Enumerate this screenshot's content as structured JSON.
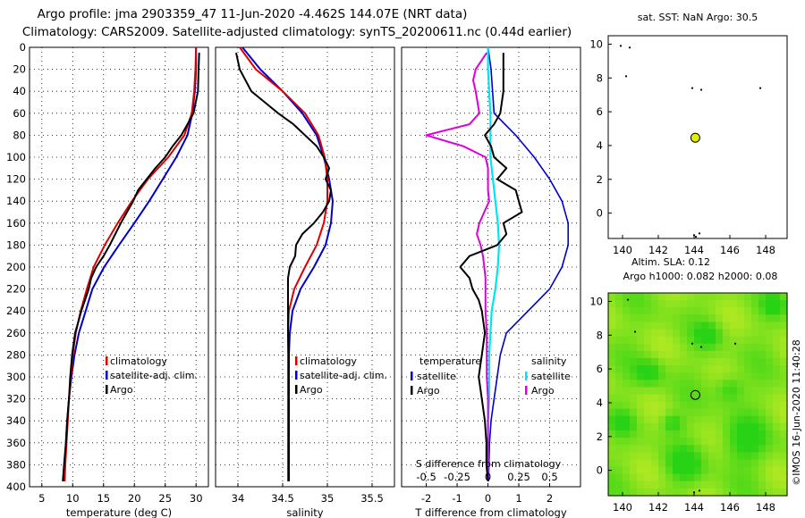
{
  "title_line1": "Argo profile: jma 2903359_47 11-Jun-2020 -4.462S 144.07E (NRT data)",
  "title_line2": "Climatology: CARS2009. Satellite-adjusted climatology: synTS_20200611.nc (0.44d earlier)",
  "footer_stamp": "©IMOS 16-Jun-2020 11:40:28",
  "colors": {
    "climatology": "#dd0000",
    "satellite": "#0000cc",
    "argo": "#000000",
    "sal_satellite": "#00e5ee",
    "sal_argo": "#dd00dd",
    "marker": "#e0f000"
  },
  "chart_data": [
    {
      "type": "line",
      "id": "temperature",
      "xlabel": "temperature (deg C)",
      "xlim": [
        3,
        32
      ],
      "ylim": [
        400,
        0
      ],
      "xticks": [
        5,
        10,
        15,
        20,
        25,
        30
      ],
      "yticks": [
        0,
        20,
        40,
        60,
        80,
        100,
        120,
        140,
        160,
        180,
        200,
        220,
        240,
        260,
        280,
        300,
        320,
        340,
        360,
        380,
        400
      ],
      "legend": [
        "climatology",
        "satellite-adj. clim.",
        "Argo"
      ],
      "series": [
        {
          "name": "climatology",
          "depth": [
            0,
            20,
            40,
            60,
            80,
            100,
            120,
            140,
            160,
            180,
            200,
            220,
            240,
            260,
            280,
            300,
            320,
            340,
            360,
            380,
            395
          ],
          "values": [
            30.0,
            29.9,
            29.7,
            29.3,
            28.1,
            25.5,
            22.2,
            19.6,
            17.3,
            15.2,
            13.4,
            12.3,
            11.3,
            10.5,
            10.0,
            9.7,
            9.4,
            9.2,
            9.0,
            8.8,
            8.7
          ]
        },
        {
          "name": "satellite-adj. clim.",
          "depth": [
            0,
            20,
            40,
            60,
            80,
            100,
            120,
            140,
            160,
            180,
            200,
            220,
            240,
            260,
            280,
            300,
            320,
            340,
            360,
            380,
            395
          ],
          "values": [
            30.0,
            30.0,
            29.8,
            29.4,
            28.6,
            26.8,
            24.6,
            22.4,
            20.0,
            17.5,
            15.1,
            13.2,
            12.1,
            11.0,
            10.3,
            9.8,
            9.4,
            9.1,
            8.9,
            8.7,
            8.6
          ]
        },
        {
          "name": "Argo",
          "depth": [
            5,
            20,
            40,
            60,
            70,
            80,
            90,
            100,
            110,
            120,
            130,
            140,
            150,
            160,
            170,
            180,
            190,
            200,
            210,
            220,
            230,
            240,
            250,
            260,
            280,
            300,
            320,
            340,
            360,
            380,
            395
          ],
          "values": [
            30.5,
            30.4,
            30.3,
            29.6,
            28.6,
            27.6,
            26.2,
            25.0,
            23.4,
            22.0,
            20.6,
            19.8,
            18.8,
            17.8,
            16.9,
            16.0,
            15.0,
            13.8,
            13.0,
            12.6,
            12.0,
            11.4,
            10.9,
            10.4,
            9.9,
            9.6,
            9.4,
            9.1,
            8.9,
            8.6,
            8.4
          ]
        }
      ]
    },
    {
      "type": "line",
      "id": "salinity",
      "xlabel": "salinity",
      "xlim": [
        33.75,
        35.75
      ],
      "ylim": [
        400,
        0
      ],
      "xticks": [
        34,
        34.5,
        35,
        35.5
      ],
      "legend": [
        "climatology",
        "satellite-adj. clim.",
        "Argo"
      ],
      "series": [
        {
          "name": "climatology",
          "depth": [
            0,
            20,
            40,
            60,
            80,
            100,
            120,
            140,
            160,
            180,
            200,
            220,
            240,
            260,
            280,
            300,
            320,
            340,
            360,
            380,
            395
          ],
          "values": [
            34.02,
            34.2,
            34.5,
            34.75,
            34.9,
            34.97,
            35.0,
            35.0,
            34.96,
            34.88,
            34.75,
            34.63,
            34.57,
            34.56,
            34.56,
            34.56,
            34.56,
            34.56,
            34.56,
            34.56,
            34.56
          ]
        },
        {
          "name": "satellite-adj. clim.",
          "depth": [
            0,
            20,
            40,
            60,
            80,
            100,
            120,
            140,
            160,
            180,
            200,
            220,
            240,
            260,
            280,
            300,
            320,
            340,
            360,
            380,
            395
          ],
          "values": [
            34.05,
            34.25,
            34.5,
            34.72,
            34.88,
            34.96,
            35.02,
            35.06,
            35.04,
            34.98,
            34.85,
            34.7,
            34.61,
            34.58,
            34.57,
            34.57,
            34.57,
            34.57,
            34.57,
            34.57,
            34.57
          ]
        },
        {
          "name": "Argo",
          "depth": [
            5,
            20,
            40,
            50,
            60,
            70,
            80,
            90,
            100,
            110,
            120,
            130,
            140,
            150,
            160,
            170,
            180,
            190,
            200,
            210,
            220,
            240,
            260,
            280,
            300,
            320,
            340,
            360,
            380,
            395
          ],
          "values": [
            33.98,
            34.02,
            34.15,
            34.3,
            34.45,
            34.62,
            34.75,
            34.88,
            34.96,
            35.02,
            34.98,
            35.04,
            35.02,
            34.95,
            34.85,
            34.72,
            34.65,
            34.64,
            34.58,
            34.56,
            34.56,
            34.56,
            34.56,
            34.57,
            34.57,
            34.57,
            34.57,
            34.57,
            34.57,
            34.57
          ]
        }
      ]
    },
    {
      "type": "line",
      "id": "differences",
      "xlabel": "T difference from climatology",
      "x2label": "S difference from climatology",
      "xlim": [
        -2.8,
        3.0
      ],
      "x2lim": [
        -0.7,
        0.75
      ],
      "ylim": [
        400,
        0
      ],
      "xticks": [
        -2,
        -1,
        0,
        1,
        2
      ],
      "x2ticks": [
        -0.5,
        -0.25,
        0,
        0.25,
        0.5
      ],
      "legend_left_header": "temperature",
      "legend_right_header": "salinity",
      "legend_left": [
        "satellite",
        "Argo"
      ],
      "legend_right": [
        "satellite",
        "Argo"
      ],
      "series": [
        {
          "name": "T satellite",
          "depth": [
            0,
            20,
            40,
            60,
            80,
            100,
            120,
            140,
            160,
            180,
            200,
            220,
            240,
            260,
            280,
            300,
            320,
            340,
            360,
            380,
            395
          ],
          "values": [
            0.0,
            0.1,
            0.15,
            0.2,
            0.9,
            1.5,
            2.0,
            2.4,
            2.6,
            2.6,
            2.4,
            2.0,
            1.3,
            0.6,
            0.4,
            0.3,
            0.2,
            0.1,
            0.05,
            0.03,
            0.02
          ]
        },
        {
          "name": "T Argo",
          "depth": [
            5,
            20,
            40,
            60,
            70,
            80,
            90,
            100,
            110,
            120,
            130,
            140,
            150,
            160,
            170,
            180,
            190,
            200,
            210,
            220,
            230,
            240,
            260,
            280,
            300,
            320,
            340,
            360,
            380,
            395
          ],
          "values": [
            0.5,
            0.5,
            0.5,
            0.4,
            0.2,
            -0.1,
            0.1,
            0.2,
            0.6,
            0.3,
            0.9,
            1.0,
            1.1,
            0.5,
            0.6,
            0.3,
            -0.6,
            -0.9,
            -0.6,
            -0.5,
            -0.3,
            -0.2,
            -0.1,
            -0.2,
            -0.3,
            -0.2,
            -0.1,
            -0.05,
            -0.05,
            0.0
          ]
        },
        {
          "name": "S satellite",
          "depth": [
            0,
            20,
            40,
            60,
            80,
            100,
            120,
            140,
            160,
            180,
            200,
            220,
            240,
            260,
            280,
            300,
            320,
            340,
            360,
            380,
            395
          ],
          "values": [
            0.0,
            0.0,
            0.01,
            0.02,
            0.02,
            0.02,
            0.04,
            0.06,
            0.08,
            0.09,
            0.08,
            0.06,
            0.03,
            0.02,
            0.01,
            0.01,
            0.01,
            0.0,
            0.0,
            0.0,
            0.0
          ]
        },
        {
          "name": "S Argo",
          "depth": [
            5,
            20,
            30,
            40,
            60,
            70,
            80,
            90,
            100,
            110,
            120,
            130,
            140,
            150,
            160,
            170,
            180,
            190,
            200,
            210,
            220,
            240,
            260,
            280,
            300,
            320,
            340,
            360,
            380,
            395
          ],
          "values": [
            -0.01,
            -0.1,
            -0.12,
            -0.1,
            -0.07,
            -0.15,
            -0.5,
            -0.2,
            -0.02,
            0.0,
            0.0,
            0.0,
            0.01,
            -0.03,
            -0.07,
            -0.09,
            -0.06,
            -0.04,
            -0.03,
            -0.02,
            -0.02,
            -0.02,
            -0.01,
            -0.01,
            -0.01,
            0.0,
            0.0,
            0.0,
            0.0,
            0.0
          ]
        }
      ]
    },
    {
      "type": "scatter",
      "id": "sst_map",
      "title": "sat. SST: NaN Argo: 30.5",
      "xlim": [
        139.2,
        149.2
      ],
      "ylim": [
        -1.5,
        10.5
      ],
      "xticks": [
        140,
        142,
        144,
        146,
        148
      ],
      "yticks": [
        0,
        2,
        4,
        6,
        8,
        10
      ],
      "argo_position": [
        144.07,
        4.462
      ],
      "dots": [
        [
          139.9,
          9.9
        ],
        [
          140.4,
          9.8
        ],
        [
          140.2,
          8.1
        ],
        [
          143.9,
          7.4
        ],
        [
          144.4,
          7.3
        ],
        [
          147.7,
          7.4
        ],
        [
          144.0,
          -1.3
        ],
        [
          144.3,
          -1.2
        ],
        [
          144.1,
          -1.4
        ]
      ]
    },
    {
      "type": "heatmap",
      "id": "sla_map",
      "title_line1": "Altim. SLA: 0.12",
      "title_line2": "Argo h1000: 0.082 h2000: 0.08",
      "xlim": [
        139.2,
        149.2
      ],
      "ylim": [
        -1.5,
        10.5
      ],
      "xticks": [
        140,
        142,
        144,
        146,
        148
      ],
      "yticks": [
        0,
        2,
        4,
        6,
        8,
        10
      ],
      "argo_position": [
        144.07,
        4.462
      ],
      "dots": [
        [
          140.3,
          10.1
        ],
        [
          140.7,
          8.2
        ],
        [
          143.9,
          7.5
        ],
        [
          144.4,
          7.3
        ],
        [
          146.3,
          7.5
        ],
        [
          144.0,
          -1.3
        ],
        [
          144.3,
          -1.2
        ]
      ]
    }
  ]
}
